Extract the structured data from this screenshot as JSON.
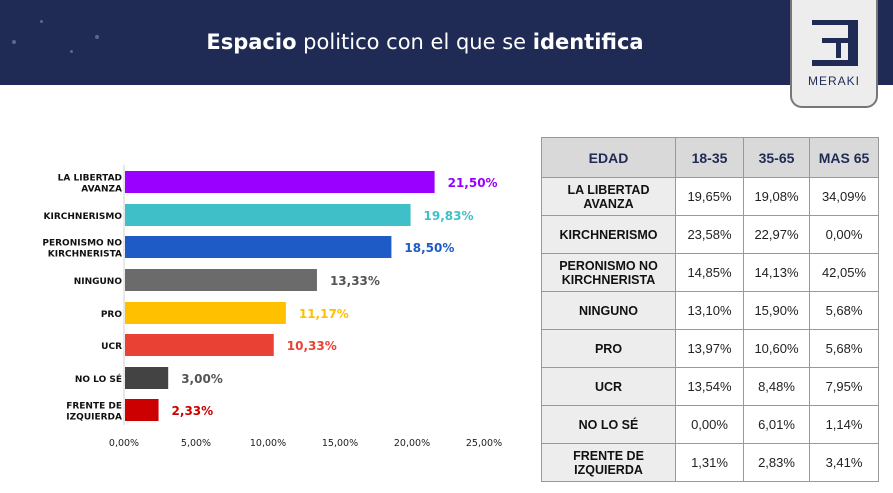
{
  "header": {
    "title_bold1": "Espacio",
    "title_mid": " politico con el que se ",
    "title_bold2": "identifica"
  },
  "logo": {
    "text": "MERAKI"
  },
  "chart_data": {
    "type": "bar",
    "orientation": "horizontal",
    "categories": [
      "LA LIBERTAD AVANZA",
      "KIRCHNERISMO",
      "PERONISMO NO KIRCHNERISTA",
      "NINGUNO",
      "PRO",
      "UCR",
      "NO LO SÉ",
      "FRENTE DE IZQUIERDA"
    ],
    "values": [
      21.5,
      19.83,
      18.5,
      13.33,
      11.17,
      10.33,
      3.0,
      2.33
    ],
    "value_labels": [
      "21,50%",
      "19,83%",
      "18,50%",
      "13,33%",
      "11,17%",
      "10,33%",
      "3,00%",
      "2,33%"
    ],
    "colors": [
      "#9900ff",
      "#3fc0c8",
      "#1f5bc6",
      "#6b6b6b",
      "#ffc000",
      "#e94235",
      "#434343",
      "#cc0000"
    ],
    "xlim": [
      0,
      25
    ],
    "x_ticks": [
      "0,00%",
      "5,00%",
      "10,00%",
      "15,00%",
      "20,00%",
      "25,00%"
    ],
    "title": "",
    "xlabel": "",
    "ylabel": ""
  },
  "table": {
    "headers": [
      "EDAD",
      "18-35",
      "35-65",
      "MAS 65"
    ],
    "rows": [
      {
        "label": "LA LIBERTAD AVANZA",
        "values": [
          "19,65%",
          "19,08%",
          "34,09%"
        ]
      },
      {
        "label": "KIRCHNERISMO",
        "values": [
          "23,58%",
          "22,97%",
          "0,00%"
        ]
      },
      {
        "label": "PERONISMO NO KIRCHNERISTA",
        "values": [
          "14,85%",
          "14,13%",
          "42,05%"
        ]
      },
      {
        "label": "NINGUNO",
        "values": [
          "13,10%",
          "15,90%",
          "5,68%"
        ]
      },
      {
        "label": "PRO",
        "values": [
          "13,97%",
          "10,60%",
          "5,68%"
        ]
      },
      {
        "label": "UCR",
        "values": [
          "13,54%",
          "8,48%",
          "7,95%"
        ]
      },
      {
        "label": "NO LO SÉ",
        "values": [
          "0,00%",
          "6,01%",
          "1,14%"
        ]
      },
      {
        "label": "FRENTE DE IZQUIERDA",
        "values": [
          "1,31%",
          "2,83%",
          "3,41%"
        ]
      }
    ]
  }
}
